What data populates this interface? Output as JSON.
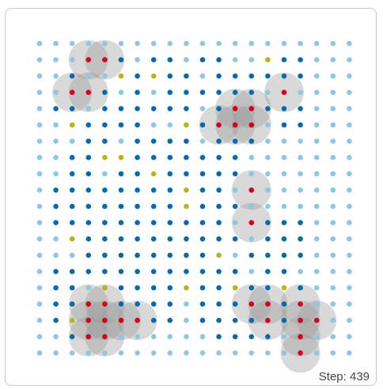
{
  "grid": {
    "cols": 20,
    "rows": 20,
    "colors": {
      "light": "#8ec8df",
      "dark": "#0a6aa8",
      "yellow": "#b5b51f",
      "red": "#d4001a",
      "halo": "#9a9a9a"
    },
    "dark_cells": [
      [
        1,
        3
      ],
      [
        1,
        4
      ],
      [
        1,
        5
      ],
      [
        1,
        7
      ],
      [
        1,
        8
      ],
      [
        1,
        10
      ],
      [
        1,
        11
      ],
      [
        1,
        14
      ],
      [
        1,
        15
      ],
      [
        1,
        16
      ],
      [
        2,
        2
      ],
      [
        2,
        5
      ],
      [
        2,
        6
      ],
      [
        2,
        8
      ],
      [
        2,
        9
      ],
      [
        2,
        11
      ],
      [
        2,
        12
      ],
      [
        2,
        13
      ],
      [
        2,
        14
      ],
      [
        2,
        15
      ],
      [
        2,
        16
      ],
      [
        3,
        3
      ],
      [
        3,
        4
      ],
      [
        3,
        6
      ],
      [
        3,
        8
      ],
      [
        3,
        9
      ],
      [
        3,
        10
      ],
      [
        3,
        11
      ],
      [
        3,
        12
      ],
      [
        3,
        13
      ],
      [
        3,
        15
      ],
      [
        4,
        1
      ],
      [
        4,
        2
      ],
      [
        4,
        4
      ],
      [
        4,
        5
      ],
      [
        4,
        6
      ],
      [
        4,
        7
      ],
      [
        4,
        8
      ],
      [
        4,
        9
      ],
      [
        4,
        11
      ],
      [
        4,
        12
      ],
      [
        4,
        14
      ],
      [
        4,
        15
      ],
      [
        4,
        16
      ],
      [
        5,
        3
      ],
      [
        5,
        4
      ],
      [
        5,
        5
      ],
      [
        5,
        6
      ],
      [
        5,
        9
      ],
      [
        5,
        10
      ],
      [
        5,
        11
      ],
      [
        5,
        15
      ],
      [
        5,
        16
      ],
      [
        6,
        3
      ],
      [
        6,
        4
      ],
      [
        6,
        6
      ],
      [
        6,
        7
      ],
      [
        6,
        8
      ],
      [
        6,
        9
      ],
      [
        6,
        11
      ],
      [
        6,
        12
      ],
      [
        6,
        13
      ],
      [
        7,
        2
      ],
      [
        7,
        3
      ],
      [
        7,
        4
      ],
      [
        7,
        5
      ],
      [
        7,
        6
      ],
      [
        7,
        7
      ],
      [
        7,
        8
      ],
      [
        7,
        9
      ],
      [
        7,
        10
      ],
      [
        7,
        11
      ],
      [
        7,
        12
      ],
      [
        8,
        2
      ],
      [
        8,
        3
      ],
      [
        8,
        5
      ],
      [
        8,
        6
      ],
      [
        8,
        7
      ],
      [
        8,
        8
      ],
      [
        8,
        9
      ],
      [
        8,
        10
      ],
      [
        8,
        11
      ],
      [
        8,
        12
      ],
      [
        9,
        1
      ],
      [
        9,
        2
      ],
      [
        9,
        3
      ],
      [
        9,
        4
      ],
      [
        9,
        5
      ],
      [
        9,
        6
      ],
      [
        9,
        7
      ],
      [
        9,
        8
      ],
      [
        9,
        9
      ],
      [
        9,
        10
      ],
      [
        9,
        11
      ],
      [
        9,
        13
      ],
      [
        10,
        1
      ],
      [
        10,
        2
      ],
      [
        10,
        3
      ],
      [
        10,
        4
      ],
      [
        10,
        5
      ],
      [
        10,
        6
      ],
      [
        10,
        7
      ],
      [
        10,
        8
      ],
      [
        10,
        9
      ],
      [
        10,
        10
      ],
      [
        10,
        11
      ],
      [
        10,
        12
      ],
      [
        11,
        1
      ],
      [
        11,
        2
      ],
      [
        11,
        3
      ],
      [
        11,
        4
      ],
      [
        11,
        5
      ],
      [
        11,
        6
      ],
      [
        11,
        7
      ],
      [
        11,
        8
      ],
      [
        11,
        9
      ],
      [
        11,
        10
      ],
      [
        11,
        11
      ],
      [
        11,
        14
      ],
      [
        11,
        15
      ],
      [
        11,
        16
      ],
      [
        12,
        2
      ],
      [
        12,
        3
      ],
      [
        12,
        4
      ],
      [
        12,
        5
      ],
      [
        12,
        6
      ],
      [
        12,
        7
      ],
      [
        12,
        8
      ],
      [
        12,
        9
      ],
      [
        12,
        10
      ],
      [
        12,
        11
      ],
      [
        12,
        12
      ],
      [
        12,
        14
      ],
      [
        12,
        15
      ],
      [
        12,
        16
      ],
      [
        13,
        3
      ],
      [
        13,
        4
      ],
      [
        13,
        5
      ],
      [
        13,
        6
      ],
      [
        13,
        7
      ],
      [
        13,
        8
      ],
      [
        13,
        9
      ],
      [
        13,
        10
      ],
      [
        13,
        11
      ],
      [
        13,
        13
      ],
      [
        13,
        14
      ],
      [
        13,
        15
      ],
      [
        13,
        16
      ],
      [
        14,
        1
      ],
      [
        14,
        2
      ],
      [
        14,
        3
      ],
      [
        14,
        4
      ],
      [
        14,
        5
      ],
      [
        14,
        6
      ],
      [
        14,
        7
      ],
      [
        14,
        8
      ],
      [
        14,
        9
      ],
      [
        14,
        10
      ],
      [
        14,
        11
      ],
      [
        14,
        12
      ],
      [
        14,
        14
      ],
      [
        14,
        15
      ],
      [
        15,
        1
      ],
      [
        15,
        2
      ],
      [
        15,
        4
      ],
      [
        15,
        5
      ],
      [
        15,
        6
      ],
      [
        15,
        7
      ],
      [
        15,
        8
      ],
      [
        15,
        10
      ],
      [
        15,
        11
      ],
      [
        15,
        12
      ],
      [
        15,
        13
      ],
      [
        15,
        14
      ],
      [
        15,
        15
      ],
      [
        15,
        16
      ],
      [
        16,
        1
      ],
      [
        16,
        2
      ],
      [
        16,
        3
      ],
      [
        16,
        4
      ],
      [
        16,
        5
      ],
      [
        16,
        6
      ],
      [
        16,
        7
      ],
      [
        16,
        8
      ],
      [
        16,
        10
      ],
      [
        16,
        11
      ],
      [
        16,
        12
      ],
      [
        16,
        13
      ],
      [
        16,
        14
      ],
      [
        16,
        15
      ],
      [
        17,
        1
      ],
      [
        17,
        2
      ],
      [
        17,
        3
      ],
      [
        17,
        4
      ],
      [
        17,
        5
      ],
      [
        17,
        6
      ],
      [
        17,
        7
      ],
      [
        17,
        8
      ],
      [
        17,
        10
      ],
      [
        17,
        11
      ],
      [
        17,
        12
      ],
      [
        17,
        13
      ],
      [
        17,
        15
      ],
      [
        17,
        16
      ],
      [
        18,
        2
      ],
      [
        18,
        3
      ],
      [
        18,
        4
      ],
      [
        18,
        11
      ],
      [
        18,
        12
      ],
      [
        18,
        13
      ],
      [
        18,
        14
      ],
      [
        18,
        16
      ]
    ],
    "yellow_cells": [
      [
        1,
        14
      ],
      [
        2,
        5
      ],
      [
        2,
        7
      ],
      [
        5,
        2
      ],
      [
        5,
        9
      ],
      [
        7,
        4
      ],
      [
        7,
        5
      ],
      [
        8,
        7
      ],
      [
        9,
        9
      ],
      [
        10,
        9
      ],
      [
        12,
        2
      ],
      [
        13,
        11
      ],
      [
        15,
        4
      ],
      [
        15,
        9
      ],
      [
        15,
        12
      ],
      [
        15,
        15
      ],
      [
        17,
        2
      ]
    ],
    "red_cells": [
      [
        1,
        3
      ],
      [
        1,
        4
      ],
      [
        3,
        2
      ],
      [
        3,
        3
      ],
      [
        3,
        15
      ],
      [
        4,
        12
      ],
      [
        4,
        13
      ],
      [
        5,
        11
      ],
      [
        5,
        12
      ],
      [
        5,
        13
      ],
      [
        9,
        13
      ],
      [
        11,
        13
      ],
      [
        16,
        3
      ],
      [
        16,
        4
      ],
      [
        16,
        13
      ],
      [
        16,
        14
      ],
      [
        16,
        16
      ],
      [
        17,
        3
      ],
      [
        17,
        4
      ],
      [
        17,
        5
      ],
      [
        17,
        6
      ],
      [
        17,
        14
      ],
      [
        17,
        16
      ],
      [
        17,
        17
      ],
      [
        18,
        3
      ],
      [
        18,
        4
      ],
      [
        18,
        16
      ],
      [
        19,
        16
      ]
    ]
  },
  "status": {
    "step_text": "Step: 439"
  }
}
